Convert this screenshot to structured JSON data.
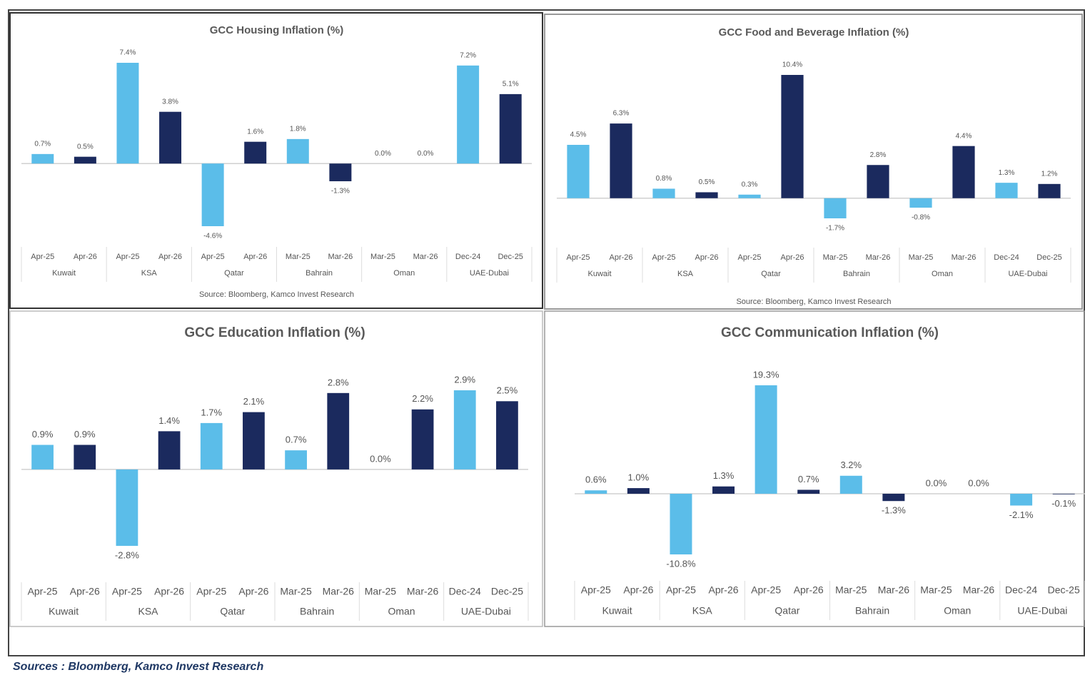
{
  "chart_data": [
    {
      "type": "bar",
      "title": "GCC Housing Inflation (%)",
      "categories": [
        "Apr-25",
        "Apr-26",
        "Apr-25",
        "Apr-26",
        "Apr-25",
        "Apr-26",
        "Mar-25",
        "Mar-26",
        "Mar-25",
        "Mar-26",
        "Dec-24",
        "Dec-25"
      ],
      "groups": [
        "Kuwait",
        "KSA",
        "Qatar",
        "Bahrain",
        "Oman",
        "UAE-Dubai"
      ],
      "values": [
        0.7,
        0.5,
        7.4,
        3.8,
        -4.6,
        1.6,
        1.8,
        -1.3,
        0.0,
        0.0,
        7.2,
        5.1
      ],
      "value_labels": [
        "0.7%",
        "0.5%",
        "7.4%",
        "3.8%",
        "-4.6%",
        "1.6%",
        "1.8%",
        "-1.3%",
        "0.0%",
        "0.0%",
        "7.2%",
        "5.1%"
      ],
      "colors": [
        "#5bbde9",
        "#1b2a5e"
      ],
      "source": "Source: Bloomberg, Kamco Invest Research"
    },
    {
      "type": "bar",
      "title": "GCC Food and Beverage Inflation (%)",
      "categories": [
        "Apr-25",
        "Apr-26",
        "Apr-25",
        "Apr-26",
        "Apr-25",
        "Apr-26",
        "Mar-25",
        "Mar-26",
        "Mar-25",
        "Mar-26",
        "Dec-24",
        "Dec-25"
      ],
      "groups": [
        "Kuwait",
        "KSA",
        "Qatar",
        "Bahrain",
        "Oman",
        "UAE-Dubai"
      ],
      "values": [
        4.5,
        6.3,
        0.8,
        0.5,
        0.3,
        10.4,
        -1.7,
        2.8,
        -0.8,
        4.4,
        1.3,
        1.2
      ],
      "value_labels": [
        "4.5%",
        "6.3%",
        "0.8%",
        "0.5%",
        "0.3%",
        "10.4%",
        "-1.7%",
        "2.8%",
        "-0.8%",
        "4.4%",
        "1.3%",
        "1.2%"
      ],
      "colors": [
        "#5bbde9",
        "#1b2a5e"
      ],
      "source": "Source: Bloomberg, Kamco Invest Research"
    },
    {
      "type": "bar",
      "title": "GCC Education Inflation (%)",
      "categories": [
        "Apr-25",
        "Apr-26",
        "Apr-25",
        "Apr-26",
        "Apr-25",
        "Apr-26",
        "Mar-25",
        "Mar-26",
        "Mar-25",
        "Mar-26",
        "Dec-24",
        "Dec-25"
      ],
      "groups": [
        "Kuwait",
        "KSA",
        "Qatar",
        "Bahrain",
        "Oman",
        "UAE-Dubai"
      ],
      "values": [
        0.9,
        0.9,
        -2.8,
        1.4,
        1.7,
        2.1,
        0.7,
        2.8,
        0.0,
        2.2,
        2.9,
        2.5
      ],
      "value_labels": [
        "0.9%",
        "0.9%",
        "-2.8%",
        "1.4%",
        "1.7%",
        "2.1%",
        "0.7%",
        "2.8%",
        "0.0%",
        "2.2%",
        "2.9%",
        "2.5%"
      ],
      "colors": [
        "#5bbde9",
        "#1b2a5e"
      ]
    },
    {
      "type": "bar",
      "title": "GCC Communication Inflation (%)",
      "categories": [
        "Apr-25",
        "Apr-26",
        "Apr-25",
        "Apr-26",
        "Apr-25",
        "Apr-26",
        "Mar-25",
        "Mar-26",
        "Mar-25",
        "Mar-26",
        "Dec-24",
        "Dec-25"
      ],
      "groups": [
        "Kuwait",
        "KSA",
        "Qatar",
        "Bahrain",
        "Oman",
        "UAE-Dubai"
      ],
      "values": [
        0.6,
        1.0,
        -10.8,
        1.3,
        19.3,
        0.7,
        3.2,
        -1.3,
        0.0,
        0.0,
        -2.1,
        -0.1
      ],
      "value_labels": [
        "0.6%",
        "1.0%",
        "-10.8%",
        "1.3%",
        "19.3%",
        "0.7%",
        "3.2%",
        "-1.3%",
        "0.0%",
        "0.0%",
        "-2.1%",
        "-0.1%"
      ],
      "colors": [
        "#5bbde9",
        "#1b2a5e"
      ]
    }
  ],
  "footer": "Sources : Bloomberg, Kamco Invest Research"
}
